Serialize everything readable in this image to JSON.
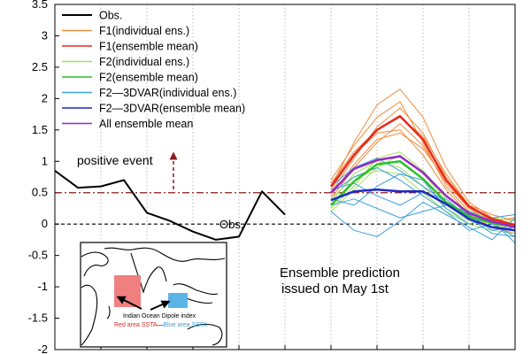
{
  "chart_data": {
    "type": "line",
    "ylim": [
      -2,
      3.5
    ],
    "yticks": [
      "-2",
      "-1.5",
      "-1",
      "-0.5",
      "0",
      "0.5",
      "1",
      "1.5",
      "2",
      "2.5",
      "3",
      "3.5"
    ],
    "ytick_values": [
      -2,
      -1.5,
      -1,
      -0.5,
      0,
      0.5,
      1,
      1.5,
      2,
      2.5,
      3,
      3.5
    ],
    "xlim": [
      0,
      20
    ],
    "grid": true,
    "legend_placement": "top-left",
    "reference_lines": [
      {
        "y": 0.5,
        "color": "#8b1a1a",
        "style": "dash-dot"
      },
      {
        "y": 0,
        "color": "#000000",
        "style": "dashed"
      }
    ],
    "legend": [
      {
        "label": "Obs.",
        "color": "#000000"
      },
      {
        "label": "F1(individual ens.)",
        "color": "#f08c3c"
      },
      {
        "label": "F1(ensemble mean)",
        "color": "#e8281e"
      },
      {
        "label": "F2(individual ens.)",
        "color": "#a6e05a"
      },
      {
        "label": "F2(ensemble mean)",
        "color": "#2cc02c"
      },
      {
        "label": "F2—3DVAR(individual ens.)",
        "color": "#3ca0dc"
      },
      {
        "label": "F2—3DVAR(ensemble mean)",
        "color": "#1e28c8"
      },
      {
        "label": "All ensemble mean",
        "color": "#9628c8"
      }
    ],
    "series": [
      {
        "name": "Obs.",
        "color": "#000000",
        "width": 2,
        "x": [
          0,
          1,
          2,
          3,
          4,
          5,
          6,
          7,
          8,
          9,
          10
        ],
        "y": [
          0.85,
          0.58,
          0.6,
          0.7,
          0.18,
          0.05,
          -0.12,
          -0.25,
          -0.2,
          0.52,
          0.15
        ]
      },
      {
        "name": "F1(ensemble mean)",
        "color": "#e8281e",
        "width": 2.5,
        "x": [
          12,
          13,
          14,
          15,
          16,
          17,
          18,
          19,
          20
        ],
        "y": [
          0.6,
          1.1,
          1.5,
          1.72,
          1.35,
          0.7,
          0.28,
          0.08,
          -0.02
        ]
      },
      {
        "name": "F2(ensemble mean)",
        "color": "#2cc02c",
        "width": 2.5,
        "x": [
          12,
          13,
          14,
          15,
          16,
          17,
          18,
          19,
          20
        ],
        "y": [
          0.3,
          0.68,
          0.95,
          1.0,
          0.72,
          0.35,
          0.12,
          0.02,
          -0.05
        ]
      },
      {
        "name": "F2—3DVAR(ensemble mean)",
        "color": "#1e28c8",
        "width": 2.5,
        "x": [
          12,
          13,
          14,
          15,
          16,
          17,
          18,
          19,
          20
        ],
        "y": [
          0.38,
          0.52,
          0.55,
          0.52,
          0.52,
          0.32,
          0.08,
          -0.05,
          -0.1
        ]
      },
      {
        "name": "All ensemble mean",
        "color": "#9628c8",
        "width": 2.5,
        "x": [
          12,
          13,
          14,
          15,
          16,
          17,
          18,
          19,
          20
        ],
        "y": [
          0.5,
          0.88,
          1.02,
          1.08,
          0.82,
          0.45,
          0.17,
          0.04,
          -0.05
        ]
      }
    ],
    "ensemble_members": [
      {
        "group": "F1(individual ens.)",
        "color": "#f08c3c",
        "x": [
          12,
          13,
          14,
          15,
          16,
          17,
          18,
          19,
          20
        ],
        "members": [
          [
            0.6,
            1.3,
            1.9,
            2.15,
            1.7,
            0.9,
            0.35,
            0.1,
            0.0
          ],
          [
            0.5,
            1.05,
            1.55,
            1.85,
            1.45,
            0.75,
            0.3,
            0.05,
            -0.05
          ],
          [
            0.7,
            1.25,
            1.7,
            1.95,
            1.3,
            0.6,
            0.2,
            0.0,
            -0.1
          ],
          [
            0.4,
            0.9,
            1.3,
            1.6,
            1.25,
            0.65,
            0.25,
            0.05,
            0.1
          ],
          [
            0.55,
            1.1,
            1.45,
            1.5,
            1.1,
            0.55,
            0.15,
            -0.05,
            -0.15
          ],
          [
            0.65,
            1.15,
            1.5,
            1.7,
            1.4,
            0.8,
            0.3,
            0.15,
            0.05
          ],
          [
            0.45,
            0.95,
            1.35,
            1.45,
            1.2,
            0.7,
            0.25,
            0.0,
            -0.05
          ]
        ]
      },
      {
        "group": "F2(individual ens.)",
        "color": "#a6e05a",
        "x": [
          12,
          13,
          14,
          15,
          16,
          17,
          18,
          19,
          20
        ],
        "members": [
          [
            0.2,
            0.55,
            0.9,
            1.1,
            0.8,
            0.4,
            0.1,
            0.0,
            -0.1
          ],
          [
            0.35,
            0.8,
            1.0,
            0.9,
            0.6,
            0.25,
            0.05,
            -0.05,
            0.0
          ],
          [
            0.25,
            0.6,
            1.05,
            1.15,
            0.85,
            0.45,
            0.2,
            0.1,
            0.05
          ],
          [
            0.4,
            0.75,
            0.85,
            0.8,
            0.5,
            0.2,
            0.0,
            -0.1,
            -0.15
          ]
        ]
      },
      {
        "group": "F2—3DVAR(individual ens.)",
        "color": "#3ca0dc",
        "x": [
          12,
          13,
          14,
          15,
          16,
          17,
          18,
          19,
          20
        ],
        "members": [
          [
            0.5,
            0.75,
            0.9,
            0.7,
            0.45,
            0.2,
            -0.1,
            0.0,
            -0.2
          ],
          [
            0.3,
            0.4,
            0.25,
            0.1,
            0.2,
            0.3,
            0.2,
            0.05,
            -0.3
          ],
          [
            0.6,
            0.9,
            1.05,
            0.85,
            0.6,
            0.35,
            0.15,
            -0.1,
            -0.05
          ],
          [
            0.2,
            -0.1,
            -0.2,
            0.05,
            0.35,
            0.15,
            -0.05,
            -0.25,
            0.1
          ],
          [
            0.55,
            0.65,
            0.45,
            0.3,
            0.5,
            0.4,
            0.1,
            -0.15,
            -0.2
          ],
          [
            0.4,
            0.3,
            0.6,
            0.8,
            0.7,
            0.25,
            0.0,
            0.1,
            0.15
          ]
        ]
      }
    ],
    "annotations": [
      {
        "text": "positive event"
      },
      {
        "text": "Obs."
      },
      {
        "text": "Ensemble prediction"
      },
      {
        "text": "issued on May 1st"
      }
    ],
    "inset": {
      "title": "Indian Ocean Dipole index",
      "formula_red": "Red area SSTA",
      "formula_sep": "—",
      "formula_blue": "Blue area SSTA",
      "red_color": "#f08080",
      "blue_color": "#5ab4e6"
    }
  }
}
